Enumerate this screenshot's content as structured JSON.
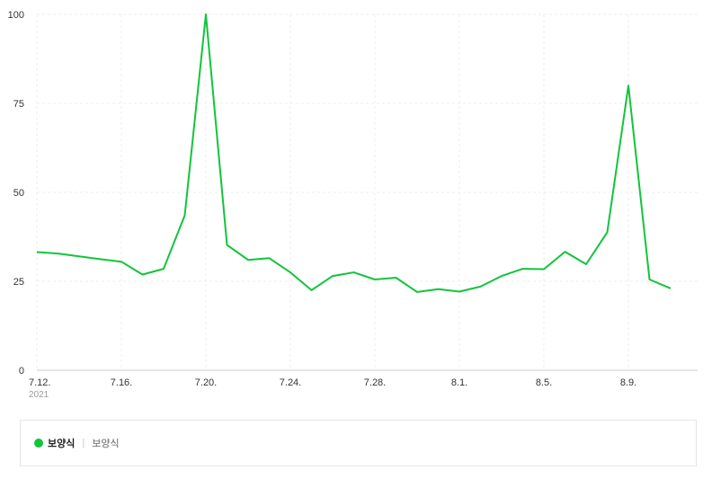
{
  "chart_data": {
    "type": "line",
    "x_labels": [
      "7.12.",
      "7.16.",
      "7.20.",
      "7.24.",
      "7.28.",
      "8.1.",
      "8.5.",
      "8.9."
    ],
    "year_label": "2021",
    "y_ticks": [
      "0",
      "25",
      "50",
      "75",
      "100"
    ],
    "ylim": [
      0,
      100
    ],
    "grid": true,
    "series": [
      {
        "name": "보양식",
        "color": "#12c43c",
        "values": [
          33.2,
          32.8,
          32,
          31.2,
          30.5,
          26.9,
          28.5,
          43.5,
          100,
          35.2,
          31,
          31.5,
          27.5,
          22.5,
          26.5,
          27.5,
          25.5,
          26,
          22,
          22.8,
          22.1,
          23.5,
          26.5,
          28.5,
          28.4,
          33.3,
          29.8,
          38.8,
          80,
          25.5,
          23
        ]
      }
    ]
  },
  "legend": {
    "label": "보양식",
    "sub_label": "보양식",
    "separator": "|"
  }
}
